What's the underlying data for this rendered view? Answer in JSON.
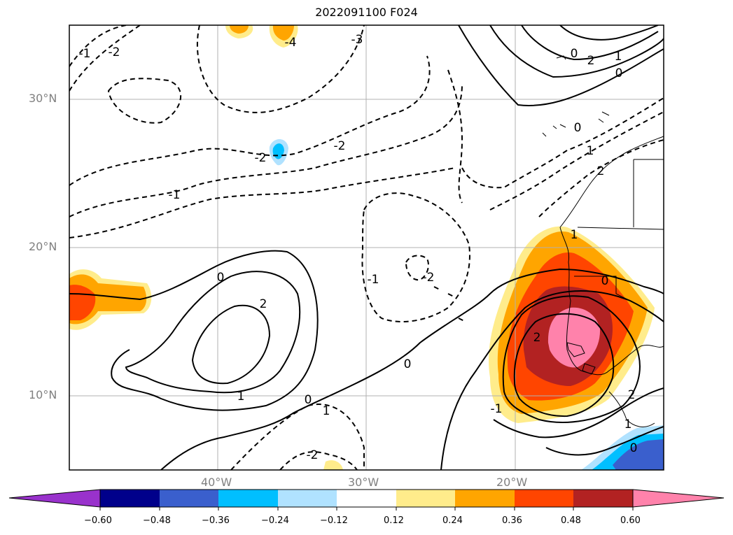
{
  "title": "2022091100 F024",
  "lat_labels": [
    "30°N",
    "20°N",
    "10°N"
  ],
  "lon_labels": [
    "40°W",
    "30°W",
    "20°W"
  ],
  "colorbar": {
    "ticks": [
      "−0.60",
      "−0.48",
      "−0.36",
      "−0.24",
      "−0.12",
      "0.12",
      "0.24",
      "0.36",
      "0.48",
      "0.60"
    ],
    "colors": [
      "#9932cc",
      "#00008b",
      "#3a5fcd",
      "#00bfff",
      "#b0e2ff",
      "#ffffff",
      "#ffec8b",
      "#ffa500",
      "#ff4500",
      "#b22222",
      "#ff82ab"
    ]
  },
  "contour_labels": [
    {
      "id": "c1",
      "text": "-1"
    },
    {
      "id": "c2",
      "text": "-2"
    },
    {
      "id": "c3",
      "text": "-3"
    },
    {
      "id": "c4",
      "text": "-4"
    },
    {
      "id": "c5",
      "text": "-2"
    },
    {
      "id": "c6",
      "text": "-2"
    },
    {
      "id": "c7",
      "text": "-1"
    },
    {
      "id": "c8",
      "text": "0"
    },
    {
      "id": "c9",
      "text": "2"
    },
    {
      "id": "c10",
      "text": "1"
    },
    {
      "id": "c11",
      "text": "0"
    },
    {
      "id": "c12",
      "text": "1"
    },
    {
      "id": "c13",
      "text": "-1"
    },
    {
      "id": "c14",
      "text": "-2"
    },
    {
      "id": "c15",
      "text": "0"
    },
    {
      "id": "c16",
      "text": "-2"
    },
    {
      "id": "c17",
      "text": "-1"
    },
    {
      "id": "c18",
      "text": "2"
    },
    {
      "id": "c19",
      "text": "1"
    },
    {
      "id": "c20",
      "text": "0"
    },
    {
      "id": "c21",
      "text": "0"
    },
    {
      "id": "c22",
      "text": "1"
    },
    {
      "id": "c23",
      "text": "2"
    },
    {
      "id": "c24",
      "text": "0"
    },
    {
      "id": "c25",
      "text": "2"
    },
    {
      "id": "c26",
      "text": "1"
    },
    {
      "id": "c27",
      "text": "0"
    },
    {
      "id": "c28",
      "text": "2"
    },
    {
      "id": "c29",
      "text": "1"
    },
    {
      "id": "c30",
      "text": "0"
    }
  ]
}
